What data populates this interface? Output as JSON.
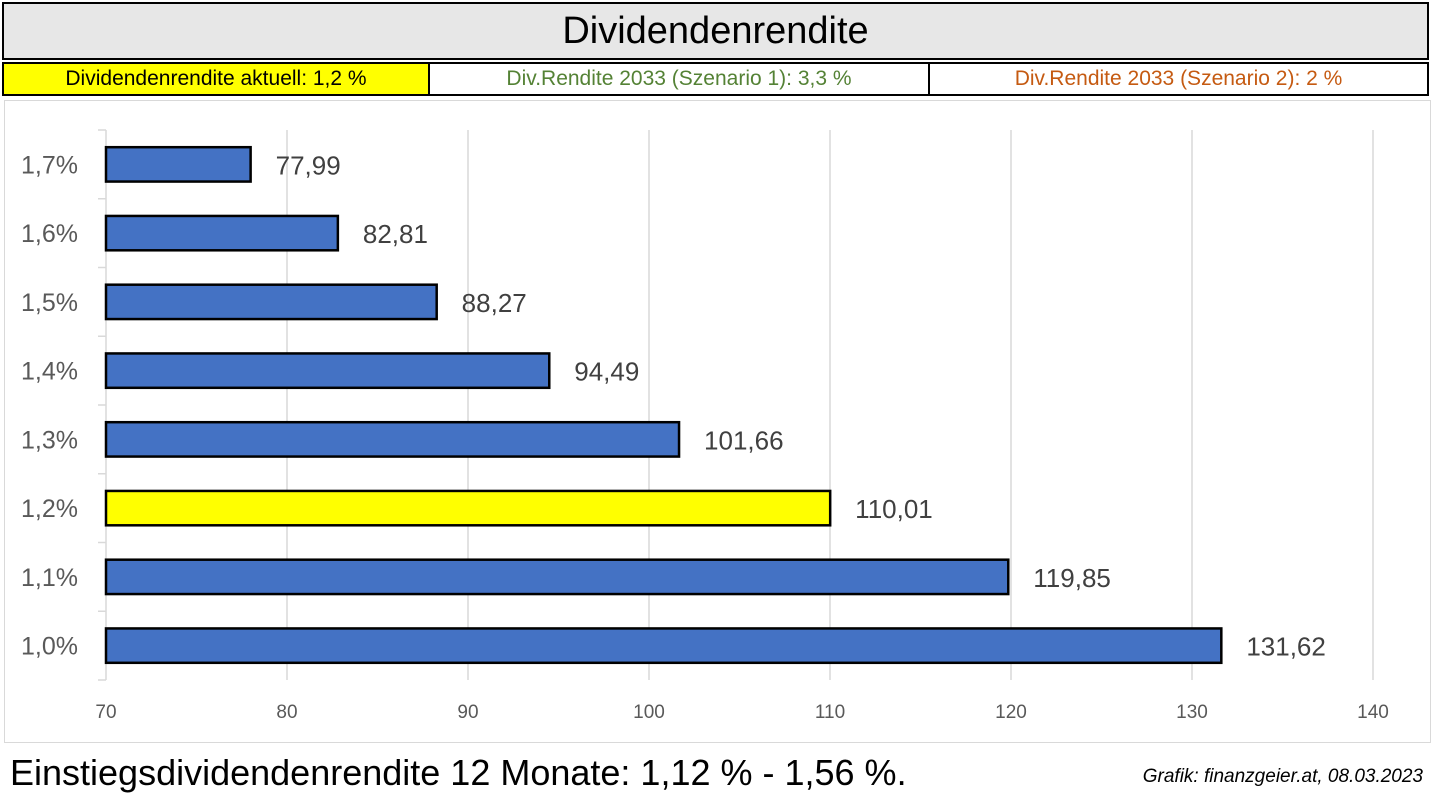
{
  "header": {
    "title": "Dividendenrendite",
    "current_label": "Dividendenrendite aktuell: 1,2 %",
    "scenario1_label": "Div.Rendite 2033 (Szenario 1): 3,3 %",
    "scenario2_label": "Div.Rendite 2033 (Szenario 2): 2 %"
  },
  "colors": {
    "bar": "#4472c4",
    "highlight_bar": "#ffff00",
    "scenario1_text": "#548235",
    "scenario2_text": "#c55a11",
    "gridline": "#d9d9d9"
  },
  "chart_data": {
    "type": "bar",
    "orientation": "horizontal",
    "categories": [
      "1,7%",
      "1,6%",
      "1,5%",
      "1,4%",
      "1,3%",
      "1,2%",
      "1,1%",
      "1,0%"
    ],
    "values": [
      77.99,
      82.81,
      88.27,
      94.49,
      101.66,
      110.01,
      119.85,
      131.62
    ],
    "value_labels": [
      "77,99",
      "82,81",
      "88,27",
      "94,49",
      "101,66",
      "110,01",
      "119,85",
      "131,62"
    ],
    "highlight_category": "1,2%",
    "xlim": [
      70,
      140
    ],
    "xticks": [
      70,
      80,
      90,
      100,
      110,
      120,
      130,
      140
    ],
    "grid": true
  },
  "footer": {
    "summary": "Einstiegsdividendenrendite 12 Monate: 1,12 % - 1,56 %.",
    "credit": "Grafik: finanzgeier.at, 08.03.2023"
  }
}
